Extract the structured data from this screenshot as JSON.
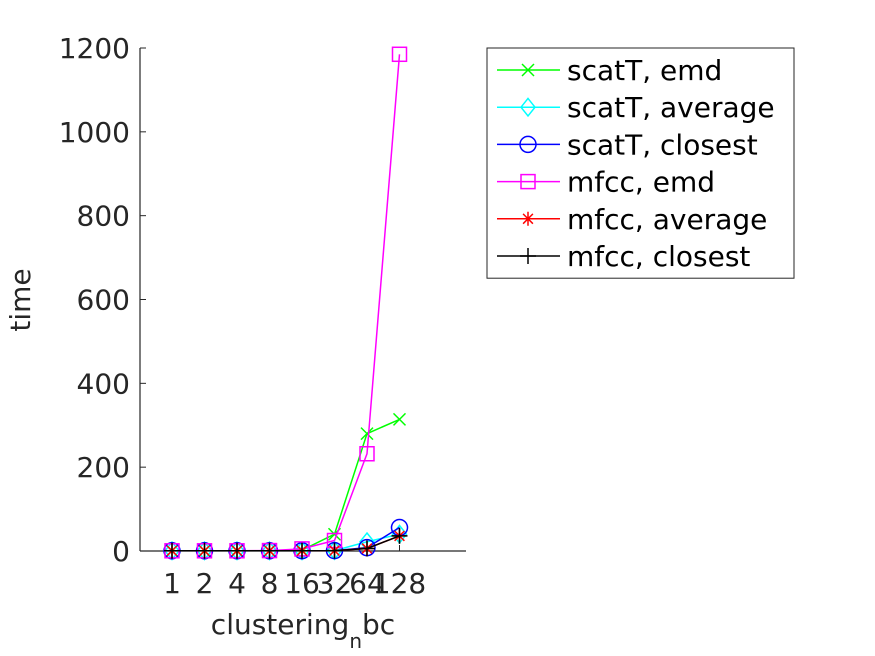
{
  "chart_data": {
    "type": "line",
    "categories": [
      "1",
      "2",
      "4",
      "8",
      "16",
      "32",
      "64",
      "128"
    ],
    "xlabel": "clustering",
    "xlabel_subscript": "n",
    "xlabel_suffix": "bc",
    "ylabel": "time",
    "ylim": [
      0,
      1200
    ],
    "yticks": [
      "0",
      "200",
      "400",
      "600",
      "800",
      "1000",
      "1200"
    ],
    "grid": false,
    "legend_position": "top-right",
    "series": [
      {
        "name": "scatT, emd",
        "color": "#00ff00",
        "marker": "x",
        "values": [
          0.5,
          0.5,
          0.5,
          0.6,
          2,
          40,
          280,
          314
        ]
      },
      {
        "name": "scatT, average",
        "color": "#00ffff",
        "marker": "diamond",
        "values": [
          0.5,
          0.5,
          0.5,
          0.5,
          0.6,
          1,
          22,
          40
        ]
      },
      {
        "name": "scatT, closest",
        "color": "#0000ff",
        "marker": "circle",
        "values": [
          0.5,
          0.5,
          0.5,
          0.5,
          0.6,
          1,
          8,
          56
        ]
      },
      {
        "name": "mfcc, emd",
        "color": "#ff00ff",
        "marker": "square",
        "values": [
          0.5,
          0.5,
          0.5,
          1,
          5,
          25,
          232,
          1185
        ]
      },
      {
        "name": "mfcc, average",
        "color": "#ff0000",
        "marker": "asterisk",
        "values": [
          0.5,
          0.5,
          0.5,
          0.5,
          0.6,
          1,
          6,
          36
        ]
      },
      {
        "name": "mfcc, closest",
        "color": "#000000",
        "marker": "plus",
        "values": [
          0.5,
          0.5,
          0.5,
          0.5,
          0.6,
          1,
          6,
          36
        ]
      }
    ]
  }
}
